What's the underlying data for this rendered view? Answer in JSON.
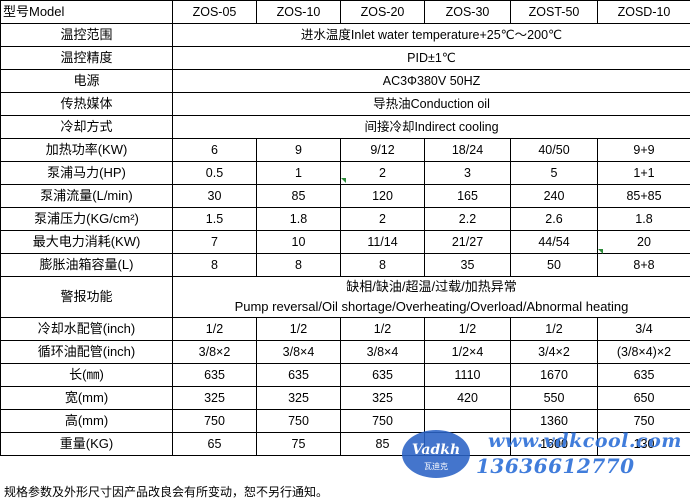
{
  "header": {
    "label": "型号Model",
    "models": [
      "ZOS-05",
      "ZOS-10",
      "ZOS-20",
      "ZOS-30",
      "ZOST-50",
      "ZOSD-10"
    ]
  },
  "merged_rows": [
    {
      "label": "温控范围",
      "value": "进水温度Inlet water temperature+25℃～200℃"
    },
    {
      "label": "温控精度",
      "value": "PID±1℃"
    },
    {
      "label": "电源",
      "value": "AC3Φ380V 50HZ"
    },
    {
      "label": "传热媒体",
      "value": "导热油Conduction oil"
    },
    {
      "label": "冷却方式",
      "value": "间接冷却Indirect cooling"
    }
  ],
  "spec_rows_a": [
    {
      "label": "加热功率(KW)",
      "values": [
        "6",
        "9",
        "9/12",
        "18/24",
        "40/50",
        "9+9"
      ]
    },
    {
      "label": "泵浦马力(HP)",
      "values": [
        "0.5",
        "1",
        "2",
        "3",
        "5",
        "1+1"
      ]
    },
    {
      "label": "泵浦流量(L/min)",
      "values": [
        "30",
        "85",
        "120",
        "165",
        "240",
        "85+85"
      ]
    },
    {
      "label": "泵浦压力(KG/cm²)",
      "values": [
        "1.5",
        "1.8",
        "2",
        "2.2",
        "2.6",
        "1.8"
      ]
    },
    {
      "label": "最大电力消耗(KW)",
      "values": [
        "7",
        "10",
        "11/14",
        "21/27",
        "44/54",
        "20"
      ]
    },
    {
      "label": "膨胀油箱容量(L)",
      "values": [
        "8",
        "8",
        "8",
        "35",
        "50",
        "8+8"
      ]
    }
  ],
  "alarm": {
    "label": "警报功能",
    "line_cn": "缺相/缺油/超温/过载/加热异常",
    "line_en": "Pump reversal/Oil shortage/Overheating/Overload/Abnormal heating"
  },
  "spec_rows_b": [
    {
      "label": "冷却水配管(inch)",
      "values": [
        "1/2",
        "1/2",
        "1/2",
        "1/2",
        "1/2",
        "3/4"
      ]
    },
    {
      "label": "循环油配管(inch)",
      "values": [
        "3/8×2",
        "3/8×4",
        "3/8×4",
        "1/2×4",
        "3/4×2",
        "(3/8×4)×2"
      ]
    },
    {
      "label": "长(㎜)",
      "values": [
        "635",
        "635",
        "635",
        "1110",
        "1670",
        "635"
      ]
    },
    {
      "label": "宽(mm)",
      "values": [
        "325",
        "325",
        "325",
        "420",
        "550",
        "650"
      ]
    },
    {
      "label": "高(mm)",
      "values": [
        "750",
        "750",
        "750",
        "",
        "1360",
        "750"
      ]
    },
    {
      "label": "重量(KG)",
      "values": [
        "65",
        "75",
        "85",
        "",
        "1600",
        "130"
      ]
    }
  ],
  "footnote": "规格参数及外形尺寸因产品改良会有所变动，恕不另行通知。",
  "watermark": {
    "logo_text": "Vadkh",
    "logo_sub": "瓦迪克",
    "url": "www.vdkcool.com",
    "phone": "13636612770"
  },
  "colors": {
    "cell_marker": "#2e8b3a",
    "watermark_blue": "#2d6fd8"
  }
}
